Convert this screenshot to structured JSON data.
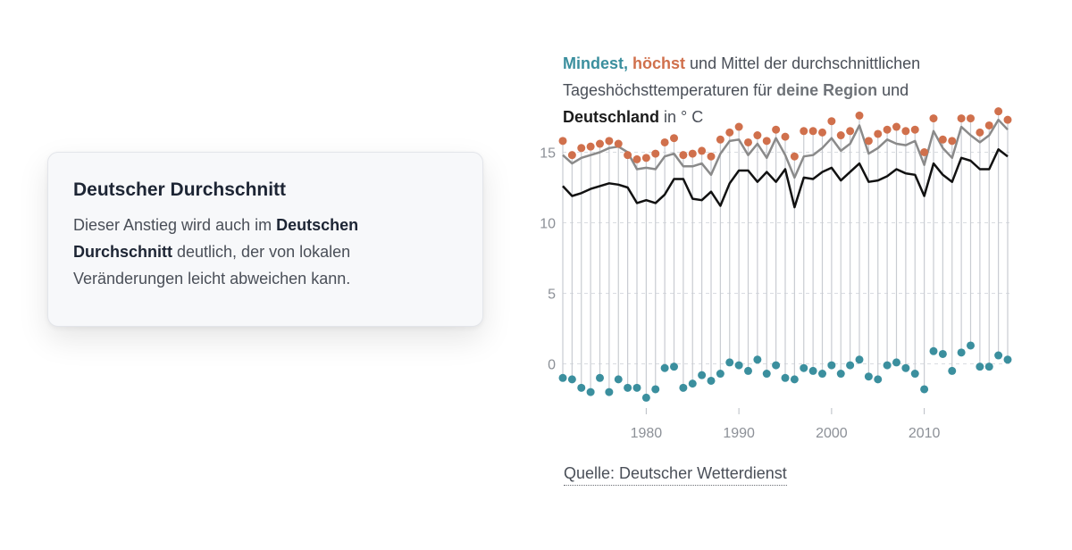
{
  "card": {
    "title": "Deutscher Durchschnitt",
    "text_before": "Dieser Anstieg wird auch im ",
    "text_bold": "Deutschen Durchschnitt",
    "text_after": " deutlich, der von lokalen Veränderungen leicht abweichen kann."
  },
  "chart_title": {
    "min_word": "Mindest,",
    "max_word": "höchst",
    "part1": " und Mittel der durchschnittlichen Tageshöchsttemperaturen für ",
    "region": "deine Region",
    "part2": " und ",
    "germany": "Deutschland",
    "part3": " in ° C"
  },
  "source": "Quelle: Deutscher Wetterdienst",
  "colors": {
    "min": "#3b8f9e",
    "max": "#d0704c",
    "region": "#8a8a8a",
    "germany": "#111111",
    "stem": "#c9ccd2",
    "grid": "#d9dce1",
    "text": "#4a4f58"
  },
  "chart_data": {
    "type": "line",
    "x_start": 1971,
    "x_end": 2019,
    "xlim": [
      1971,
      2019
    ],
    "ylim": [
      -2.5,
      17.5
    ],
    "x_ticks": [
      1980,
      1990,
      2000,
      2010
    ],
    "y_ticks": [
      0,
      5,
      10,
      15
    ],
    "grid": "horizontal dashed",
    "series": [
      {
        "role": "max",
        "style": "dots",
        "values": [
          15.8,
          14.8,
          15.3,
          15.4,
          15.6,
          15.8,
          15.6,
          14.8,
          14.5,
          14.6,
          14.9,
          15.7,
          16.0,
          14.8,
          14.9,
          15.1,
          14.7,
          15.9,
          16.4,
          16.8,
          15.7,
          16.2,
          15.8,
          16.6,
          16.1,
          14.7,
          16.5,
          16.5,
          16.4,
          17.2,
          16.2,
          16.5,
          17.6,
          15.8,
          16.3,
          16.6,
          16.8,
          16.5,
          16.6,
          15.0,
          17.4,
          15.9,
          15.8,
          17.4,
          17.4,
          16.4,
          16.9,
          17.9,
          17.3
        ]
      },
      {
        "role": "min",
        "style": "dots",
        "values": [
          -1.0,
          -1.1,
          -1.7,
          -2.0,
          -1.0,
          -2.0,
          -1.1,
          -1.7,
          -1.7,
          -2.4,
          -1.8,
          -0.3,
          -0.2,
          -1.7,
          -1.4,
          -0.8,
          -1.2,
          -0.7,
          0.1,
          -0.1,
          -0.5,
          0.3,
          -0.7,
          -0.1,
          -1.0,
          -1.1,
          -0.3,
          -0.5,
          -0.7,
          -0.1,
          -0.7,
          -0.1,
          0.3,
          -0.9,
          -1.1,
          -0.1,
          0.1,
          -0.3,
          -0.7,
          -1.8,
          0.9,
          0.7,
          -0.5,
          0.8,
          1.3,
          -0.2,
          -0.2,
          0.6,
          0.3
        ]
      },
      {
        "role": "region mean",
        "style": "line",
        "values": [
          14.8,
          14.2,
          14.6,
          14.8,
          15.0,
          15.3,
          15.4,
          15.0,
          13.8,
          13.9,
          13.8,
          14.7,
          14.9,
          14.0,
          14.0,
          14.2,
          13.4,
          14.9,
          15.8,
          15.9,
          14.8,
          15.6,
          14.6,
          16.0,
          14.8,
          13.2,
          14.7,
          14.8,
          15.3,
          16.0,
          15.1,
          15.6,
          16.9,
          14.9,
          15.3,
          15.9,
          15.6,
          15.5,
          15.8,
          14.1,
          16.5,
          15.3,
          14.6,
          16.8,
          16.2,
          15.7,
          16.2,
          17.3,
          16.6
        ]
      },
      {
        "role": "germany mean",
        "style": "line",
        "values": [
          12.6,
          11.9,
          12.1,
          12.4,
          12.6,
          12.8,
          12.7,
          12.5,
          11.4,
          11.6,
          11.4,
          12.0,
          13.1,
          13.1,
          11.7,
          11.6,
          12.2,
          11.2,
          12.8,
          13.7,
          13.7,
          12.9,
          13.6,
          12.9,
          13.8,
          11.1,
          13.2,
          13.1,
          13.6,
          13.9,
          13.0,
          13.6,
          14.2,
          12.9,
          13.0,
          13.3,
          13.8,
          13.5,
          13.4,
          11.9,
          14.2,
          13.4,
          12.9,
          14.6,
          14.4,
          13.8,
          13.8,
          15.2,
          14.7
        ]
      }
    ]
  }
}
